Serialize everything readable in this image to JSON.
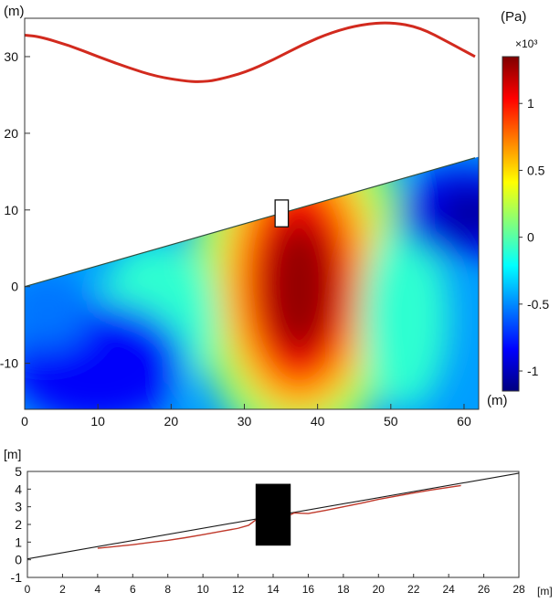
{
  "chart_data": [
    {
      "type": "heatmap",
      "title": "",
      "x_unit_label": "(m)",
      "y_unit_label": "(m)",
      "xlim": [
        0,
        62
      ],
      "ylim": [
        -16,
        35
      ],
      "x_ticks": [
        "0",
        "10",
        "20",
        "30",
        "40",
        "50",
        "60"
      ],
      "y_ticks": [
        "-10",
        "0",
        "10",
        "20",
        "30"
      ],
      "free_surface": {
        "x": [
          0,
          2,
          6,
          10,
          14,
          18,
          22,
          24,
          26,
          30,
          34,
          38,
          42,
          46,
          50,
          54,
          58,
          61.5
        ],
        "y": [
          32.8,
          32.6,
          31.5,
          30.0,
          28.6,
          27.4,
          26.8,
          26.7,
          26.9,
          27.9,
          29.6,
          31.6,
          33.2,
          34.2,
          34.5,
          33.8,
          31.8,
          30.0
        ]
      },
      "seabed_line": {
        "x": [
          0,
          61.5
        ],
        "y": [
          0,
          16.8
        ]
      },
      "structure": {
        "x": [
          34.2,
          36.0
        ],
        "y": [
          7.8,
          11.3
        ]
      },
      "pressure_peaks": [
        {
          "x": 37.5,
          "y": 0,
          "value": 1.3,
          "sign": "high"
        },
        {
          "x": 10,
          "y": -10,
          "value": -0.85,
          "sign": "low"
        },
        {
          "x": 60,
          "y": 9.5,
          "value": -1.1,
          "sign": "low"
        }
      ],
      "colorbar": {
        "unit_label": "(Pa)",
        "multiplier": "×10³",
        "range": [
          -1.15,
          1.35
        ],
        "ticks": [
          "1",
          "0.5",
          "0",
          "-0.5",
          "-1"
        ],
        "tick_values": [
          1,
          0.5,
          0,
          -0.5,
          -1
        ],
        "colormap": "jet"
      }
    },
    {
      "type": "line",
      "x_unit_label": "[m]",
      "y_unit_label": "[m]",
      "xlim": [
        0,
        28
      ],
      "ylim": [
        -1,
        5
      ],
      "x_ticks": [
        "0",
        "2",
        "4",
        "6",
        "8",
        "10",
        "12",
        "14",
        "16",
        "18",
        "20",
        "22",
        "24",
        "26",
        "28"
      ],
      "y_ticks": [
        "5",
        "4",
        "3",
        "2",
        "1",
        "0",
        "-1"
      ],
      "series": [
        {
          "color": "#1a1a1a",
          "x": [
            0,
            28
          ],
          "y": [
            0.05,
            4.9
          ]
        },
        {
          "color": "#c0392b",
          "x": [
            4.0,
            5.0,
            6.0,
            7.0,
            8.0,
            9.0,
            10.0,
            11.0,
            12.0,
            12.6,
            13.0
          ],
          "y": [
            0.65,
            0.75,
            0.85,
            0.98,
            1.1,
            1.25,
            1.42,
            1.6,
            1.78,
            1.95,
            2.25
          ]
        },
        {
          "color": "#c0392b",
          "x": [
            15.0,
            15.2,
            16.0,
            17.0,
            18.0,
            19.0,
            20.0,
            21.0,
            22.0,
            23.0,
            24.0,
            24.7
          ],
          "y": [
            2.55,
            2.65,
            2.62,
            2.8,
            3.0,
            3.2,
            3.42,
            3.6,
            3.78,
            3.95,
            4.1,
            4.2
          ]
        }
      ],
      "structure": {
        "x": [
          13.0,
          15.0
        ],
        "y": [
          0.8,
          4.3
        ]
      }
    }
  ]
}
